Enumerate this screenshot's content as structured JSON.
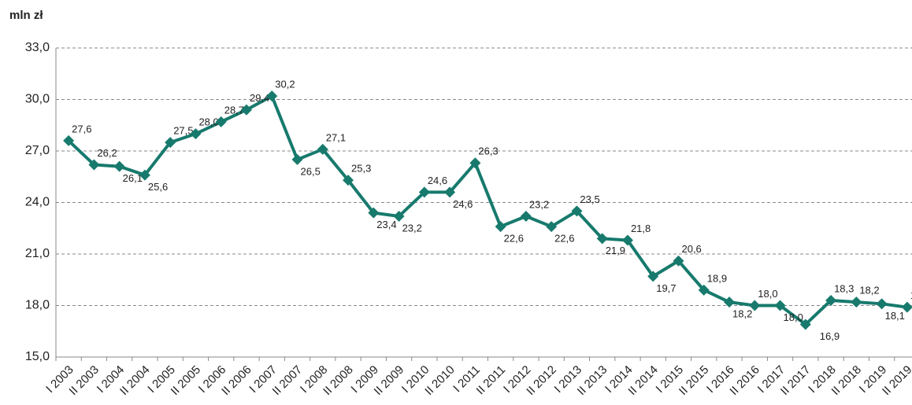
{
  "chart_data": {
    "type": "line",
    "title": "mln zł",
    "categories": [
      "I 2003",
      "II 2003",
      "I 2004",
      "II 2004",
      "I 2005",
      "II 2005",
      "I 2006",
      "II 2006",
      "I 2007",
      "II 2007",
      "I 2008",
      "II 2008",
      "I 2009",
      "II 2009",
      "I 2010",
      "II 2010",
      "I 2011",
      "II 2011",
      "I 2012",
      "II 2012",
      "I 2013",
      "II 2013",
      "I 2014",
      "II 2014",
      "I 2015",
      "II 2015",
      "I 2016",
      "II 2016",
      "I 2017",
      "II 2017",
      "I 2018",
      "II 2018",
      "I 2019",
      "II 2019"
    ],
    "series": [
      {
        "name": "mln zł",
        "color": "#177a6d",
        "values": [
          27.6,
          26.2,
          26.1,
          25.6,
          27.5,
          28.0,
          28.7,
          29.4,
          30.2,
          26.5,
          27.1,
          25.3,
          23.4,
          23.2,
          24.6,
          24.6,
          26.3,
          22.6,
          23.2,
          22.6,
          23.5,
          21.9,
          21.8,
          19.7,
          20.6,
          18.9,
          18.2,
          18.0,
          18.0,
          16.9,
          18.3,
          18.2,
          18.1,
          17.9
        ],
        "value_labels": [
          "27,6",
          "26,2",
          "26,1",
          "25,6",
          "27,5",
          "28,0",
          "28,7",
          "29,4",
          "30,2",
          "26,5",
          "27,1",
          "25,3",
          "23,4",
          "23,2",
          "24,6",
          "24,6",
          "26,3",
          "22,6",
          "23,2",
          "22,6",
          "23,5",
          "21,9",
          "21,8",
          "19,7",
          "20,6",
          "18,9",
          "18,2",
          "18,0",
          "18,0",
          "16,9",
          "18,3",
          "18,2",
          "18,1",
          "17,9"
        ]
      }
    ],
    "ylim": [
      15,
      33
    ],
    "yticks": [
      {
        "value": 15,
        "label": "15,0"
      },
      {
        "value": 18,
        "label": "18,0"
      },
      {
        "value": 21,
        "label": "21,0"
      },
      {
        "value": 24,
        "label": "24,0"
      },
      {
        "value": 27,
        "label": "27,0"
      },
      {
        "value": 30,
        "label": "30,0"
      },
      {
        "value": 33,
        "label": "33,0"
      }
    ],
    "grid": true
  }
}
